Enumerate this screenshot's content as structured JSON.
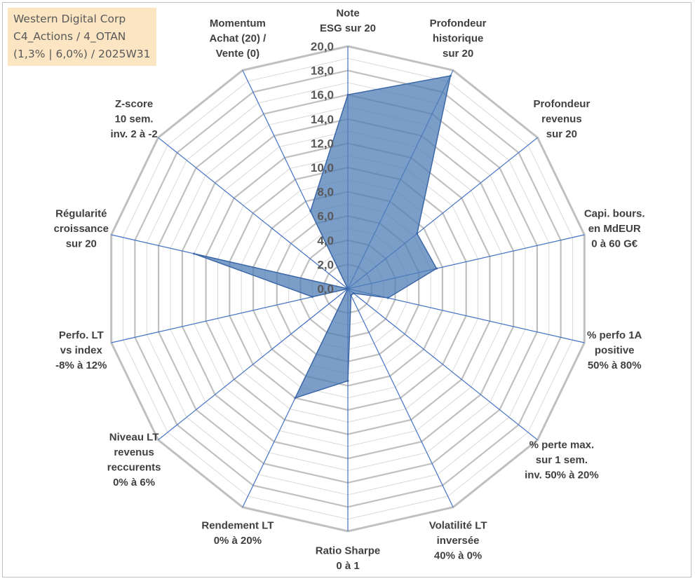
{
  "title_box": {
    "line1": "Western Digital Corp",
    "line2": "C4_Actions / 4_OTAN",
    "line3": "(1,3% | 6,0%) / 2025W31"
  },
  "chart_data": {
    "type": "radar",
    "title": "",
    "rlim": [
      0,
      20
    ],
    "ticks": [
      "0,0",
      "2,0",
      "4,0",
      "6,0",
      "8,0",
      "10,0",
      "12,0",
      "14,0",
      "16,0",
      "18,0",
      "20,0"
    ],
    "axes": [
      "Note\nESG sur 20",
      "Profondeur\nhistorique\nsur 20",
      "Profondeur\nrevenus\nsur 20",
      "Capi. bours.\nen MdEUR\n0 à 60 G€",
      "% perfo 1A\npositive\n50% à 80%",
      "% perte max.\nsur 1 sem.\ninv. 50% à 20%",
      "Volatilité LT\ninversée\n40% à 0%",
      "Ratio Sharpe\n0 à 1",
      "Rendement LT\n0% à 20%",
      "Niveau LT\nrevenus\nreccurents\n0% à 6%",
      "Perfo. LT\nvs index\n-8% à 12%",
      "Régularité\ncroissance\nsur 20",
      "Z-score\n10 sem.\ninv. 2 à -2",
      "Momentum\nAchat (20) /\nVente (0)"
    ],
    "series": [
      {
        "values": [
          16.0,
          19.5,
          7.3,
          7.5,
          3.4,
          0.6,
          0.6,
          7.6,
          10.0,
          0.0,
          3.0,
          13.0,
          0.0,
          7.1
        ]
      }
    ],
    "grid": true,
    "colors": {
      "fill": "#4f7eb6",
      "stroke": "#3d68a8",
      "spoke": "#4472c4",
      "grid": "#d9d9d9",
      "outer_grid": "#c0c0c0",
      "title_bg": "#fbe5c3"
    }
  }
}
